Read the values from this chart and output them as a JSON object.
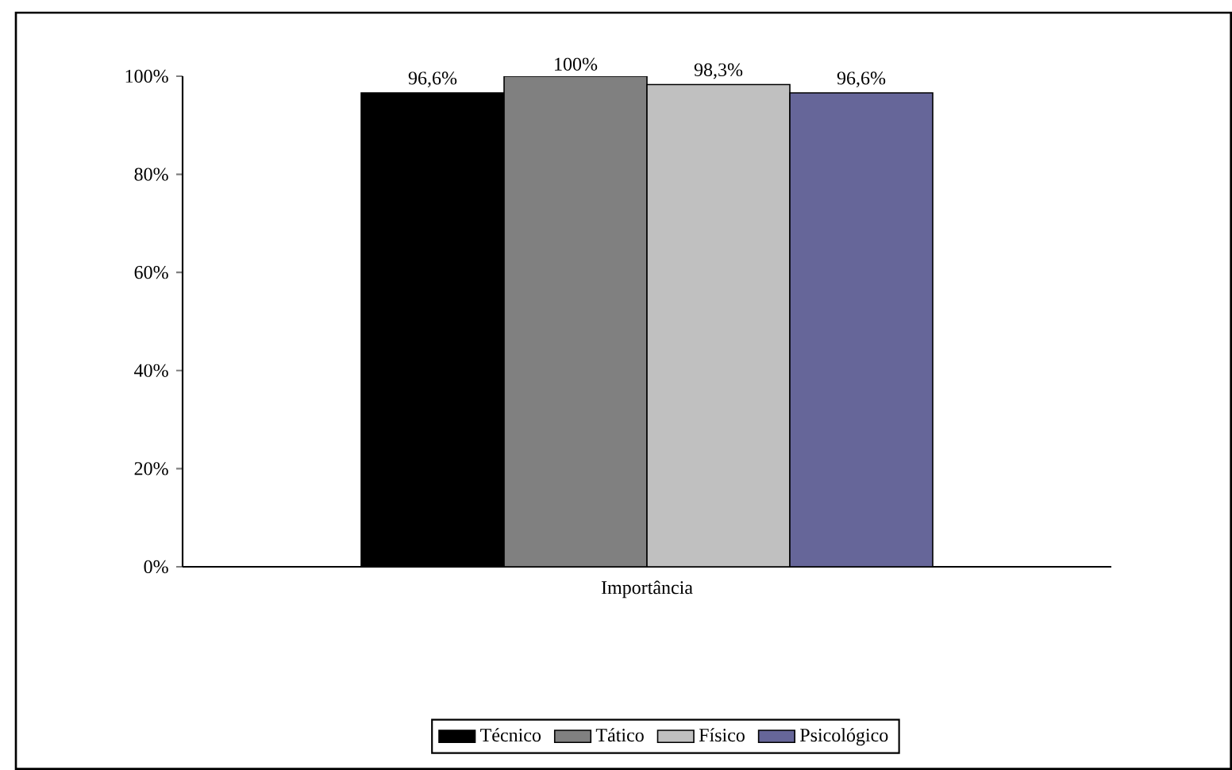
{
  "chart_data": {
    "type": "bar",
    "categories": [
      "Importância"
    ],
    "series": [
      {
        "name": "Técnico",
        "color": "#000000",
        "values": [
          96.6
        ],
        "value_labels": [
          "96,6%"
        ]
      },
      {
        "name": "Tático",
        "color": "#808080",
        "values": [
          100
        ],
        "value_labels": [
          "100%"
        ]
      },
      {
        "name": "Físico",
        "color": "#c0c0c0",
        "values": [
          98.3
        ],
        "value_labels": [
          "98,3%"
        ]
      },
      {
        "name": "Psicológico",
        "color": "#666699",
        "values": [
          96.6
        ],
        "value_labels": [
          "96,6%"
        ]
      }
    ],
    "ylim": [
      0,
      100
    ],
    "yticks": [
      {
        "value": 0,
        "label": "0%"
      },
      {
        "value": 20,
        "label": "20%"
      },
      {
        "value": 40,
        "label": "40%"
      },
      {
        "value": 60,
        "label": "60%"
      },
      {
        "value": 80,
        "label": "80%"
      },
      {
        "value": 100,
        "label": "100%"
      }
    ],
    "legend": "bottom",
    "grid": false
  }
}
